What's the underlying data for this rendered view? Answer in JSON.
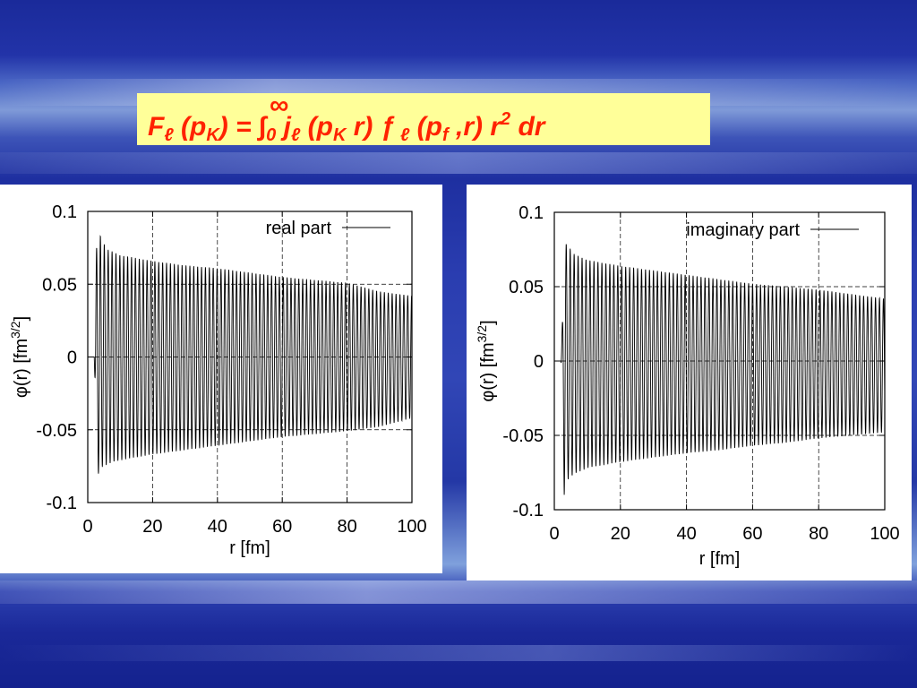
{
  "formula": {
    "F": "F",
    "l1": "ℓ",
    "open1": " (p",
    "K1": "K",
    "eq": ") = ",
    "integral": "∫",
    "lower": "0",
    "upper": "∞",
    "j": " j",
    "l2": "ℓ",
    "open2": " (p",
    "K2": "K",
    "r1": " r)  ƒ",
    "l3": " ℓ",
    "open3": " (p",
    "f": "f",
    "r2": " ,r) r",
    "sq": "2",
    "dr": " dr"
  },
  "chart_data": [
    {
      "type": "line",
      "legend": "real part",
      "legend_position": "top-right",
      "xlabel": "r [fm]",
      "ylabel": "φ(r) [fm",
      "ylabel_sup": "3/2",
      "ylabel_end": "]",
      "xlim": [
        0,
        100
      ],
      "ylim": [
        -0.1,
        0.1
      ],
      "xticks": [
        0,
        20,
        40,
        60,
        80,
        100
      ],
      "xtick_labels": [
        "0",
        "20",
        "40",
        "60",
        "80",
        "100"
      ],
      "yticks": [
        0.1,
        0.05,
        0,
        -0.05,
        -0.1
      ],
      "ytick_labels": [
        "0.1",
        "0.05",
        "0",
        "-0.05",
        "-0.1"
      ],
      "grid": true,
      "x": [
        0,
        2,
        2.5,
        3,
        4,
        6,
        8,
        10,
        15,
        20,
        30,
        40,
        50,
        60,
        70,
        80,
        90,
        100
      ],
      "upper_envelope": [
        0,
        0,
        0.06,
        0.095,
        0.082,
        0.074,
        0.072,
        0.07,
        0.068,
        0.066,
        0.063,
        0.061,
        0.058,
        0.055,
        0.053,
        0.051,
        0.045,
        0.042
      ],
      "lower_envelope": [
        0,
        0,
        -0.04,
        -0.082,
        -0.076,
        -0.074,
        -0.072,
        -0.071,
        -0.069,
        -0.067,
        -0.064,
        -0.061,
        -0.058,
        -0.055,
        -0.053,
        -0.051,
        -0.048,
        -0.042
      ],
      "oscillation_period": 1.2,
      "phase": 0
    },
    {
      "type": "line",
      "legend": "imaginary part",
      "legend_position": "top-right",
      "xlabel": "r [fm]",
      "ylabel": "φ(r) [fm",
      "ylabel_sup": "3/2",
      "ylabel_end": "]",
      "xlim": [
        0,
        100
      ],
      "ylim": [
        -0.1,
        0.1
      ],
      "xticks": [
        0,
        20,
        40,
        60,
        80,
        100
      ],
      "xtick_labels": [
        "0",
        "20",
        "40",
        "60",
        "80",
        "100"
      ],
      "yticks": [
        0.1,
        0.05,
        0,
        -0.05,
        -0.1
      ],
      "ytick_labels": [
        "0.1",
        "0.05",
        "0",
        "-0.05",
        "-0.1"
      ],
      "grid": true,
      "x": [
        0,
        2,
        2.5,
        3,
        4,
        6,
        8,
        10,
        15,
        20,
        30,
        40,
        50,
        60,
        70,
        80,
        90,
        100
      ],
      "upper_envelope": [
        0,
        0,
        0.03,
        0.08,
        0.078,
        0.072,
        0.07,
        0.068,
        0.066,
        0.064,
        0.061,
        0.058,
        0.055,
        0.052,
        0.05,
        0.048,
        0.045,
        0.042
      ],
      "lower_envelope": [
        0,
        0,
        -0.05,
        -0.09,
        -0.08,
        -0.076,
        -0.074,
        -0.072,
        -0.07,
        -0.068,
        -0.065,
        -0.062,
        -0.06,
        -0.057,
        -0.055,
        -0.052,
        -0.05,
        -0.048
      ],
      "oscillation_period": 1.2,
      "phase": 1.5708
    }
  ]
}
